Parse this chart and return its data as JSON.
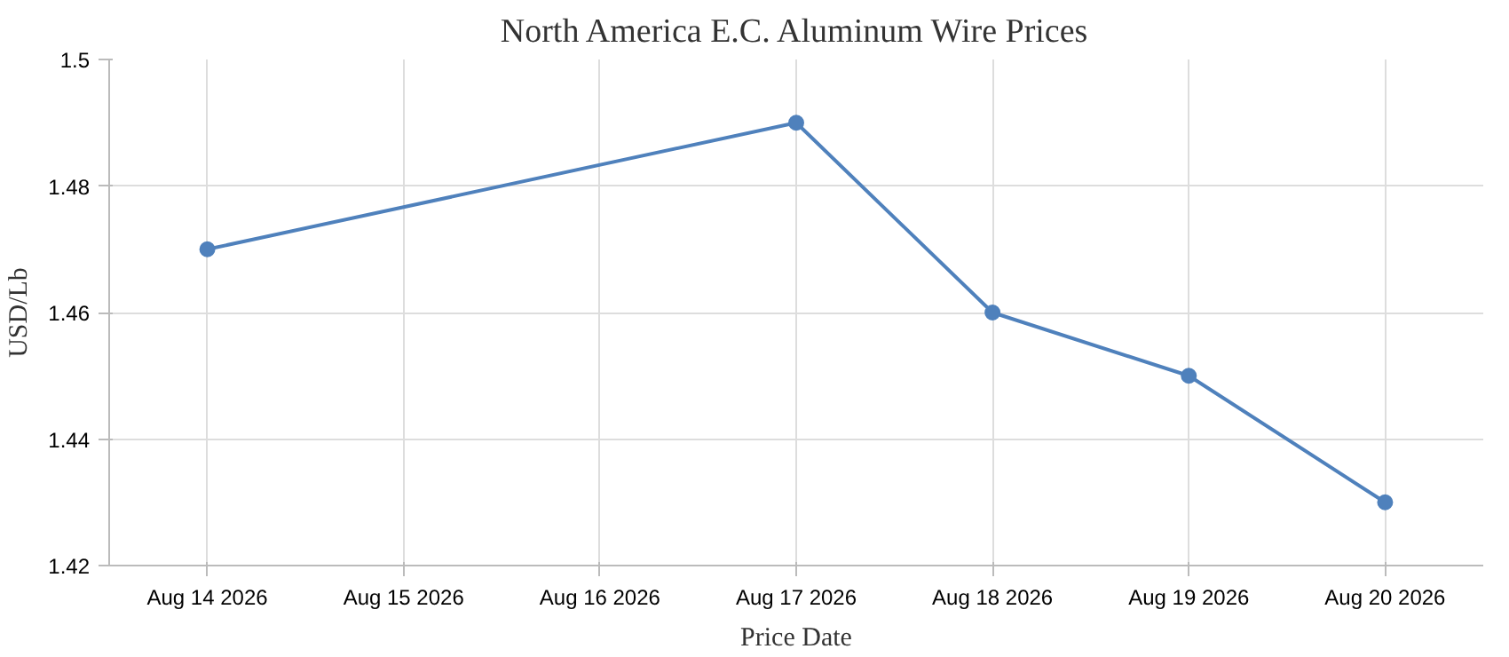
{
  "chart_data": {
    "type": "line",
    "title": "North America E.C. Aluminum Wire Prices",
    "xlabel": "Price Date",
    "ylabel": "USD/Lb",
    "x": [
      "2026-08-14",
      "2026-08-17",
      "2026-08-18",
      "2026-08-19",
      "2026-08-20"
    ],
    "series": [
      {
        "color": "#4f81bc",
        "values": [
          1.47,
          1.49,
          1.46,
          1.45,
          1.43
        ]
      }
    ],
    "xlim": [
      "2026-08-13T12:00",
      "2026-08-20T12:00"
    ],
    "xticks": [
      {
        "value": "2026-08-14",
        "label": "Aug 14 2026"
      },
      {
        "value": "2026-08-15",
        "label": "Aug 15 2026"
      },
      {
        "value": "2026-08-16",
        "label": "Aug 16 2026"
      },
      {
        "value": "2026-08-17",
        "label": "Aug 17 2026"
      },
      {
        "value": "2026-08-18",
        "label": "Aug 18 2026"
      },
      {
        "value": "2026-08-19",
        "label": "Aug 19 2026"
      },
      {
        "value": "2026-08-20",
        "label": "Aug 20 2026"
      }
    ],
    "ylim": [
      1.42,
      1.5
    ],
    "yticks": [
      1.42,
      1.44,
      1.46,
      1.48,
      1.5
    ],
    "grid": true,
    "marker": "circle",
    "line_style": "solid"
  }
}
